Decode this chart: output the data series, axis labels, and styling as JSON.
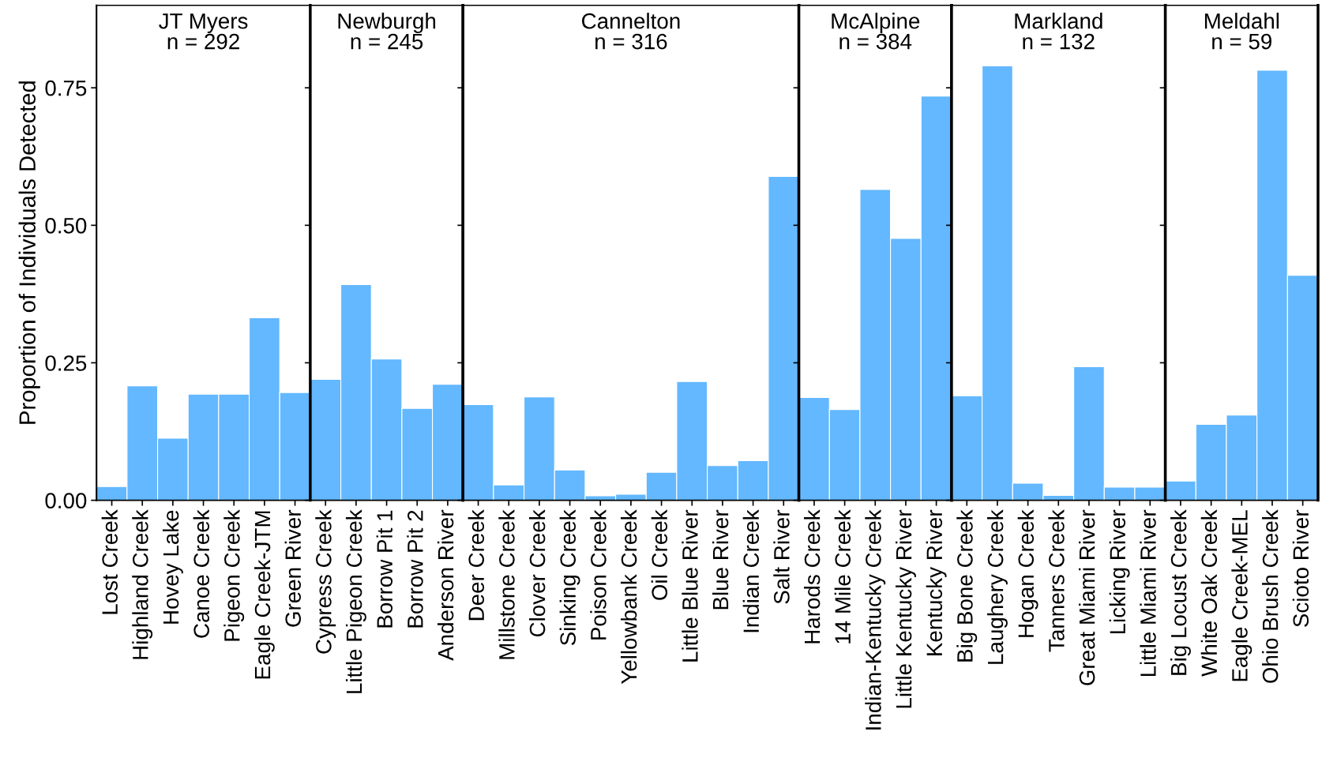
{
  "chart_data": [
    {
      "type": "bar",
      "title": "JT Myers\nn = 292",
      "ylabel": "Proportion of Individuals Detected",
      "categories": [
        "Lost Creek",
        "Highland Creek",
        "Hovey Lake",
        "Canoe Creek",
        "Pigeon Creek",
        "Eagle Creek-JTM",
        "Green River"
      ],
      "values": [
        0.025,
        0.208,
        0.113,
        0.193,
        0.193,
        0.332,
        0.196
      ],
      "color": "#63b8ff",
      "ylim": [
        0,
        0.9
      ],
      "yticks": [
        {
          "value": 0,
          "label": "0.00"
        },
        {
          "value": 0.25,
          "label": "0.25"
        },
        {
          "value": 0.5,
          "label": "0.50"
        },
        {
          "value": 0.75,
          "label": "0.75"
        }
      ]
    },
    {
      "type": "bar",
      "title": "Newburgh\nn = 245",
      "categories": [
        "Cypress Creek",
        "Little Pigeon Creek",
        "Borrow Pit 1",
        "Borrow Pit 2",
        "Anderson River"
      ],
      "values": [
        0.22,
        0.392,
        0.257,
        0.167,
        0.211
      ],
      "color": "#63b8ff",
      "ylim": [
        0,
        0.9
      ],
      "yticks": [
        0,
        0.25,
        0.5,
        0.75
      ],
      "tick_labels": "x"
    },
    {
      "type": "bar",
      "title": "Cannelton\nn = 316",
      "categories": [
        "Deer Creek",
        "Millstone Creek",
        "Clover Creek",
        "Sinking Creek",
        "Poison Creek",
        "Yellowbank Creek",
        "Oil Creek",
        "Little Blue River",
        "Blue River",
        "Indian Creek",
        "Salt River"
      ],
      "values": [
        0.174,
        0.028,
        0.188,
        0.055,
        0.008,
        0.011,
        0.051,
        0.216,
        0.063,
        0.072,
        0.589
      ],
      "color": "#63b8ff",
      "ylim": [
        0,
        0.9
      ],
      "yticks": [
        0,
        0.25,
        0.5,
        0.75
      ],
      "tick_labels": "x"
    },
    {
      "type": "bar",
      "title": "McAlpine\nn = 384",
      "categories": [
        "Harods Creek",
        "14 Mile Creek",
        "Indian-Kentucky Creek",
        "Little Kentucky River",
        "Kentucky River"
      ],
      "values": [
        0.187,
        0.165,
        0.565,
        0.476,
        0.735
      ],
      "color": "#63b8ff",
      "ylim": [
        0,
        0.9
      ],
      "yticks": [
        0,
        0.25,
        0.5,
        0.75
      ],
      "tick_labels": "x"
    },
    {
      "type": "bar",
      "title": "Markland\nn = 132",
      "categories": [
        "Big Bone Creek",
        "Laughery Creek",
        "Hogan Creek",
        "Tanners Creek",
        "Great Miami River",
        "Licking River",
        "Little Miami River"
      ],
      "values": [
        0.19,
        0.79,
        0.031,
        0.009,
        0.243,
        0.024,
        0.024
      ],
      "color": "#63b8ff",
      "ylim": [
        0,
        0.9
      ],
      "yticks": [
        0,
        0.25,
        0.5,
        0.75
      ],
      "tick_labels": "x"
    },
    {
      "type": "bar",
      "title": "Meldahl\nn = 59",
      "categories": [
        "Big Locust Creek",
        "White Oak Creek",
        "Eagle Creek-MEL",
        "Ohio Brush Creek",
        "Scioto River"
      ],
      "values": [
        0.035,
        0.138,
        0.155,
        0.782,
        0.409
      ],
      "color": "#63b8ff",
      "ylim": [
        0,
        0.9
      ],
      "yticks": [
        0,
        0.25,
        0.5,
        0.75
      ],
      "tick_labels": "x"
    }
  ]
}
